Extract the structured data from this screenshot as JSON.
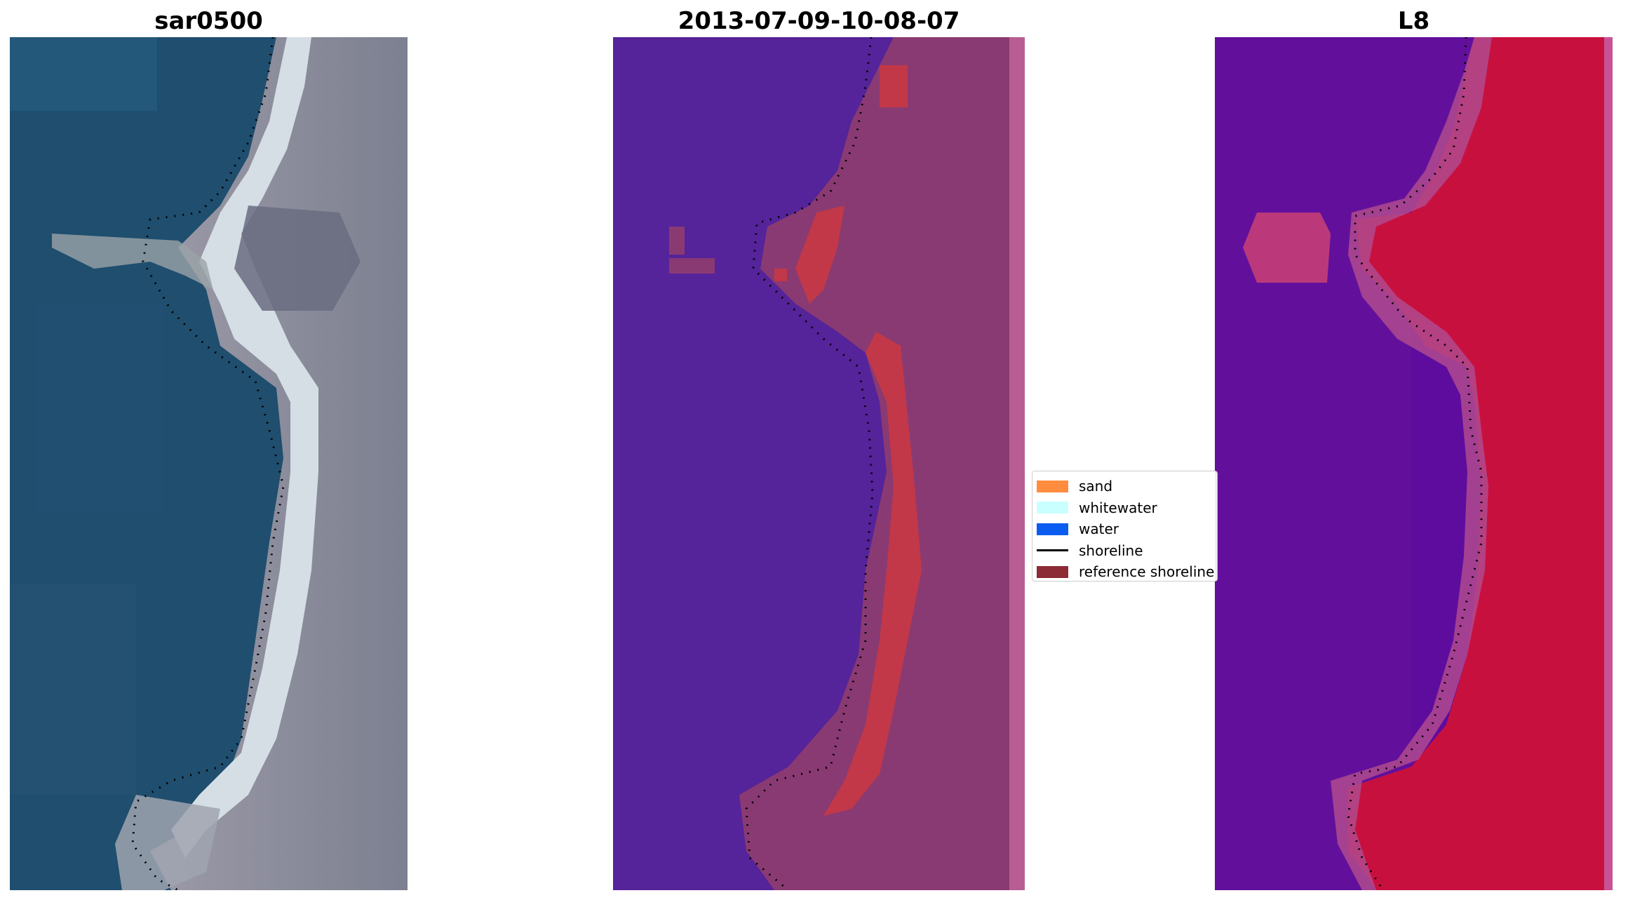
{
  "panels": [
    {
      "title": "sar0500",
      "kind": "rgb"
    },
    {
      "title": "2013-07-09-10-08-07",
      "kind": "classified"
    },
    {
      "title": "L8",
      "kind": "index"
    }
  ],
  "legend": {
    "items": [
      {
        "label": "sand",
        "color": "#ff8c3f",
        "type": "patch"
      },
      {
        "label": "whitewater",
        "color": "#c9ffff",
        "type": "patch"
      },
      {
        "label": "water",
        "color": "#0a5cf0",
        "type": "patch"
      },
      {
        "label": "shoreline",
        "color": "#000000",
        "type": "line"
      },
      {
        "label": "reference shoreline",
        "color": "#8c2a36",
        "type": "patch"
      }
    ]
  },
  "colors": {
    "water_rgb": "#1f4e6e",
    "sand_rgb": "#d4dee4",
    "land_rgb": "#8a8c9a",
    "class_water": "#55239a",
    "class_land": "#8a3a72",
    "class_sand": "#c23848",
    "index_low": "#62109c",
    "index_high": "#c8103f"
  }
}
